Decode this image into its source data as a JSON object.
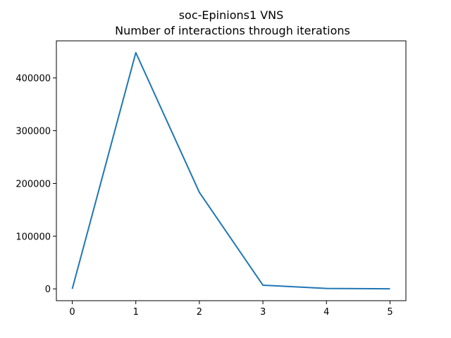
{
  "chart_data": {
    "type": "line",
    "title": "soc-Epinions1 VNS",
    "subtitle": "Number of interactions through iterations",
    "xlabel": "",
    "ylabel": "",
    "x": [
      0,
      1,
      2,
      3,
      4,
      5
    ],
    "series": [
      {
        "values": [
          0,
          448000,
          183000,
          7000,
          800,
          100
        ],
        "color": "#1f77b4"
      }
    ],
    "xlim": [
      -0.25,
      5.25
    ],
    "ylim": [
      -22400,
      470400
    ],
    "xticks": [
      0,
      1,
      2,
      3,
      4,
      5
    ],
    "yticks": [
      0,
      100000,
      200000,
      300000,
      400000
    ],
    "xtick_labels": [
      "0",
      "1",
      "2",
      "3",
      "4",
      "5"
    ],
    "ytick_labels": [
      "0",
      "100000",
      "200000",
      "300000",
      "400000"
    ],
    "grid": false,
    "legend": "none"
  }
}
